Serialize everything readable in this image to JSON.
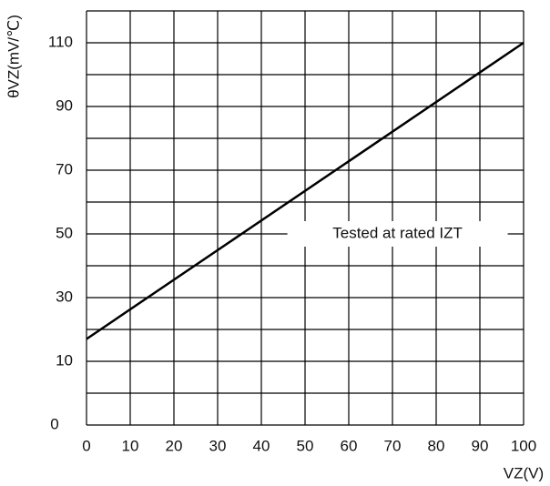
{
  "chart_data": {
    "type": "line",
    "x_label": "VZ(V)",
    "y_label": "θVZ(mV/℃)",
    "annotation": {
      "text": "Tested at rated IZT",
      "x": 72,
      "y": 50
    },
    "corner_label": "0",
    "x": [
      0,
      100
    ],
    "series": [
      {
        "name": "θVZ",
        "color": "#000000",
        "values": [
          17,
          110
        ]
      }
    ],
    "xlim": [
      0,
      100
    ],
    "xticks": [
      0,
      10,
      20,
      30,
      40,
      50,
      60,
      70,
      80,
      90,
      100
    ],
    "ylim": [
      -10,
      120
    ],
    "yticks": [
      10,
      30,
      50,
      70,
      90,
      110
    ],
    "ygrid": [
      -10,
      0,
      10,
      20,
      30,
      40,
      50,
      60,
      70,
      80,
      90,
      100,
      110,
      120
    ],
    "grid": true
  }
}
